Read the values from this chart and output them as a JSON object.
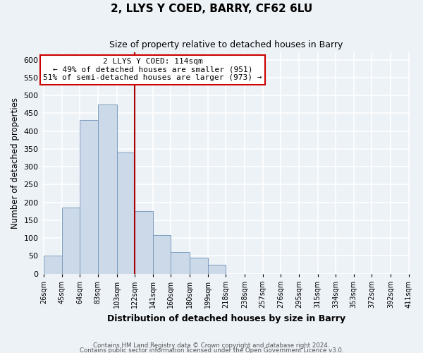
{
  "title": "2, LLYS Y COED, BARRY, CF62 6LU",
  "subtitle": "Size of property relative to detached houses in Barry",
  "xlabel": "Distribution of detached houses by size in Barry",
  "ylabel": "Number of detached properties",
  "bar_color": "#ccd9e8",
  "bar_edgecolor": "#7a9cbf",
  "vline_x": 122,
  "vline_color": "#aa0000",
  "categories": [
    "26sqm",
    "45sqm",
    "64sqm",
    "83sqm",
    "103sqm",
    "122sqm",
    "141sqm",
    "160sqm",
    "180sqm",
    "199sqm",
    "218sqm",
    "238sqm",
    "257sqm",
    "276sqm",
    "295sqm",
    "315sqm",
    "334sqm",
    "353sqm",
    "372sqm",
    "392sqm",
    "411sqm"
  ],
  "bin_edges": [
    26,
    45,
    64,
    83,
    103,
    122,
    141,
    160,
    180,
    199,
    218,
    238,
    257,
    276,
    295,
    315,
    334,
    353,
    372,
    392,
    411
  ],
  "values": [
    50,
    185,
    430,
    475,
    340,
    175,
    108,
    60,
    44,
    25,
    0,
    0,
    0,
    0,
    0,
    0,
    0,
    0,
    0,
    0
  ],
  "ylim": [
    0,
    620
  ],
  "yticks": [
    0,
    50,
    100,
    150,
    200,
    250,
    300,
    350,
    400,
    450,
    500,
    550,
    600
  ],
  "annotation_title": "2 LLYS Y COED: 114sqm",
  "annotation_line1": "← 49% of detached houses are smaller (951)",
  "annotation_line2": "51% of semi-detached houses are larger (973) →",
  "footer1": "Contains HM Land Registry data © Crown copyright and database right 2024.",
  "footer2": "Contains public sector information licensed under the Open Government Licence v3.0.",
  "background_color": "#edf2f7",
  "plot_background": "#edf2f7",
  "grid_color": "#ffffff"
}
